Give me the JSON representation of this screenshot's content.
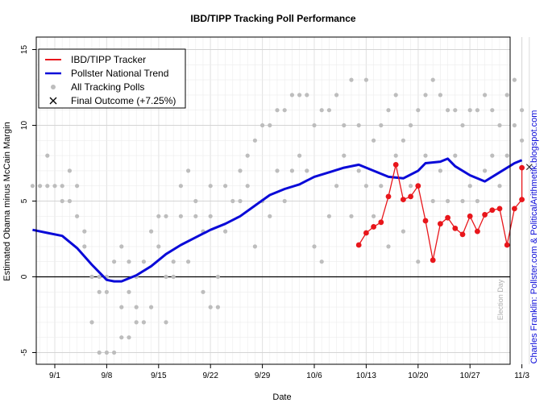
{
  "chart_data": {
    "type": "line",
    "title": "IBD/TIPP Tracking Poll Performance",
    "xlabel": "Date",
    "ylabel": "Estimated Obama minus McCain Margin",
    "x_ticks": [
      "9/1",
      "9/8",
      "9/15",
      "9/22",
      "9/29",
      "10/6",
      "10/13",
      "10/20",
      "10/27",
      "11/3"
    ],
    "y_ticks": [
      -5,
      0,
      5,
      10,
      15
    ],
    "ylim": [
      -5.2,
      15.5
    ],
    "x_days_offset_of_first_tick": 0,
    "grid": true,
    "legend_position": "top-left",
    "annotation_election_day": "Election Day",
    "credit": "Charles Franklin: Pollster.com & PoliticalArithmetik.blogspot.com",
    "colors": {
      "ibd": "#e8161b",
      "trend": "#0a0ad8",
      "polls": "#bdbdbd",
      "zero_line": "#000000"
    },
    "legend": [
      {
        "label": "IBD/TIPP Tracker",
        "kind": "line-red"
      },
      {
        "label": "Pollster National Trend",
        "kind": "line-blue"
      },
      {
        "label": "All Tracking Polls",
        "kind": "dot-gray"
      },
      {
        "label": "Final Outcome (+7.25%)",
        "kind": "cross"
      }
    ],
    "final_outcome": {
      "date": "11/4",
      "value": 7.25
    },
    "series": [
      {
        "name": "IBD/TIPP Tracker",
        "points": [
          [
            "10/12",
            2.1
          ],
          [
            "10/13",
            2.9
          ],
          [
            "10/14",
            3.3
          ],
          [
            "10/15",
            3.6
          ],
          [
            "10/16",
            5.3
          ],
          [
            "10/17",
            7.4
          ],
          [
            "10/18",
            5.1
          ],
          [
            "10/19",
            5.3
          ],
          [
            "10/20",
            6.0
          ],
          [
            "10/21",
            3.7
          ],
          [
            "10/22",
            1.1
          ],
          [
            "10/23",
            3.5
          ],
          [
            "10/24",
            3.9
          ],
          [
            "10/25",
            3.2
          ],
          [
            "10/26",
            2.8
          ],
          [
            "10/27",
            4.0
          ],
          [
            "10/28",
            3.0
          ],
          [
            "10/29",
            4.1
          ],
          [
            "10/30",
            4.4
          ],
          [
            "10/31",
            4.5
          ],
          [
            "11/1",
            2.1
          ],
          [
            "11/2",
            4.5
          ],
          [
            "11/3",
            5.1
          ],
          [
            "11/3",
            7.2
          ]
        ]
      },
      {
        "name": "Pollster National Trend",
        "points": [
          [
            "8/29",
            3.1
          ],
          [
            "8/31",
            2.9
          ],
          [
            "9/2",
            2.7
          ],
          [
            "9/4",
            1.9
          ],
          [
            "9/6",
            0.8
          ],
          [
            "9/8",
            -0.2
          ],
          [
            "9/9",
            -0.3
          ],
          [
            "9/10",
            -0.3
          ],
          [
            "9/12",
            0.1
          ],
          [
            "9/14",
            0.7
          ],
          [
            "9/16",
            1.5
          ],
          [
            "9/18",
            2.1
          ],
          [
            "9/20",
            2.6
          ],
          [
            "9/22",
            3.1
          ],
          [
            "9/24",
            3.5
          ],
          [
            "9/26",
            4.0
          ],
          [
            "9/28",
            4.7
          ],
          [
            "9/30",
            5.4
          ],
          [
            "10/2",
            5.8
          ],
          [
            "10/4",
            6.1
          ],
          [
            "10/6",
            6.6
          ],
          [
            "10/8",
            6.9
          ],
          [
            "10/10",
            7.2
          ],
          [
            "10/12",
            7.4
          ],
          [
            "10/14",
            7.0
          ],
          [
            "10/16",
            6.6
          ],
          [
            "10/18",
            6.5
          ],
          [
            "10/20",
            7.0
          ],
          [
            "10/21",
            7.5
          ],
          [
            "10/23",
            7.6
          ],
          [
            "10/24",
            7.8
          ],
          [
            "10/25",
            7.3
          ],
          [
            "10/27",
            6.7
          ],
          [
            "10/29",
            6.3
          ],
          [
            "10/31",
            6.9
          ],
          [
            "11/2",
            7.5
          ],
          [
            "11/3",
            7.7
          ]
        ]
      },
      {
        "name": "All Tracking Polls",
        "points": [
          [
            "8/29",
            6
          ],
          [
            "8/30",
            6
          ],
          [
            "8/31",
            8
          ],
          [
            "8/31",
            6
          ],
          [
            "9/1",
            6
          ],
          [
            "9/2",
            5
          ],
          [
            "9/2",
            6
          ],
          [
            "9/3",
            7
          ],
          [
            "9/3",
            5
          ],
          [
            "9/4",
            4
          ],
          [
            "9/4",
            6
          ],
          [
            "9/5",
            3
          ],
          [
            "9/5",
            2
          ],
          [
            "9/6",
            -3
          ],
          [
            "9/6",
            0
          ],
          [
            "9/7",
            -1
          ],
          [
            "9/7",
            -5
          ],
          [
            "9/7",
            0
          ],
          [
            "9/8",
            -5
          ],
          [
            "9/8",
            0
          ],
          [
            "9/8",
            -1
          ],
          [
            "9/9",
            -5
          ],
          [
            "9/9",
            1
          ],
          [
            "9/10",
            2
          ],
          [
            "9/10",
            -2
          ],
          [
            "9/10",
            -4
          ],
          [
            "9/11",
            -4
          ],
          [
            "9/11",
            1
          ],
          [
            "9/11",
            -1
          ],
          [
            "9/12",
            -3
          ],
          [
            "9/12",
            -2
          ],
          [
            "9/12",
            0
          ],
          [
            "9/13",
            -3
          ],
          [
            "9/13",
            1
          ],
          [
            "9/14",
            -2
          ],
          [
            "9/14",
            3
          ],
          [
            "9/15",
            2
          ],
          [
            "9/15",
            4
          ],
          [
            "9/16",
            -3
          ],
          [
            "9/16",
            4
          ],
          [
            "9/16",
            0
          ],
          [
            "9/17",
            1
          ],
          [
            "9/17",
            0
          ],
          [
            "9/18",
            4
          ],
          [
            "9/18",
            6
          ],
          [
            "9/19",
            7
          ],
          [
            "9/19",
            1
          ],
          [
            "9/20",
            5
          ],
          [
            "9/20",
            4
          ],
          [
            "9/21",
            -1
          ],
          [
            "9/21",
            3
          ],
          [
            "9/22",
            4
          ],
          [
            "9/22",
            -2
          ],
          [
            "9/22",
            6
          ],
          [
            "9/23",
            0
          ],
          [
            "9/23",
            -2
          ],
          [
            "9/24",
            6
          ],
          [
            "9/24",
            3
          ],
          [
            "9/25",
            5
          ],
          [
            "9/26",
            7
          ],
          [
            "9/26",
            5
          ],
          [
            "9/27",
            8
          ],
          [
            "9/27",
            6
          ],
          [
            "9/28",
            9
          ],
          [
            "9/28",
            2
          ],
          [
            "9/29",
            10
          ],
          [
            "9/29",
            5
          ],
          [
            "9/30",
            10
          ],
          [
            "9/30",
            4
          ],
          [
            "10/1",
            11
          ],
          [
            "10/1",
            7
          ],
          [
            "10/2",
            11
          ],
          [
            "10/2",
            5
          ],
          [
            "10/3",
            12
          ],
          [
            "10/3",
            7
          ],
          [
            "10/4",
            12
          ],
          [
            "10/4",
            8
          ],
          [
            "10/5",
            12
          ],
          [
            "10/5",
            7
          ],
          [
            "10/6",
            10
          ],
          [
            "10/6",
            2
          ],
          [
            "10/7",
            11
          ],
          [
            "10/7",
            1
          ],
          [
            "10/8",
            11
          ],
          [
            "10/8",
            4
          ],
          [
            "10/9",
            12
          ],
          [
            "10/9",
            6
          ],
          [
            "10/10",
            10
          ],
          [
            "10/10",
            8
          ],
          [
            "10/11",
            13
          ],
          [
            "10/11",
            4
          ],
          [
            "10/12",
            7
          ],
          [
            "10/12",
            10
          ],
          [
            "10/13",
            13
          ],
          [
            "10/13",
            6
          ],
          [
            "10/14",
            9
          ],
          [
            "10/14",
            4
          ],
          [
            "10/15",
            10
          ],
          [
            "10/15",
            6
          ],
          [
            "10/16",
            11
          ],
          [
            "10/16",
            2
          ],
          [
            "10/17",
            12
          ],
          [
            "10/17",
            8
          ],
          [
            "10/18",
            9
          ],
          [
            "10/18",
            3
          ],
          [
            "10/19",
            10
          ],
          [
            "10/19",
            6
          ],
          [
            "10/20",
            11
          ],
          [
            "10/20",
            1
          ],
          [
            "10/21",
            12
          ],
          [
            "10/21",
            8
          ],
          [
            "10/22",
            13
          ],
          [
            "10/22",
            5
          ],
          [
            "10/23",
            12
          ],
          [
            "10/23",
            7
          ],
          [
            "10/24",
            11
          ],
          [
            "10/24",
            5
          ],
          [
            "10/25",
            11
          ],
          [
            "10/25",
            8
          ],
          [
            "10/26",
            10
          ],
          [
            "10/26",
            5
          ],
          [
            "10/27",
            11
          ],
          [
            "10/27",
            6
          ],
          [
            "10/28",
            11
          ],
          [
            "10/28",
            5
          ],
          [
            "10/29",
            12
          ],
          [
            "10/29",
            7
          ],
          [
            "10/30",
            11
          ],
          [
            "10/30",
            8
          ],
          [
            "10/31",
            10
          ],
          [
            "10/31",
            6
          ],
          [
            "11/1",
            12
          ],
          [
            "11/1",
            8
          ],
          [
            "11/2",
            13
          ],
          [
            "11/2",
            10
          ],
          [
            "11/3",
            11
          ],
          [
            "11/3",
            9
          ]
        ]
      }
    ]
  }
}
